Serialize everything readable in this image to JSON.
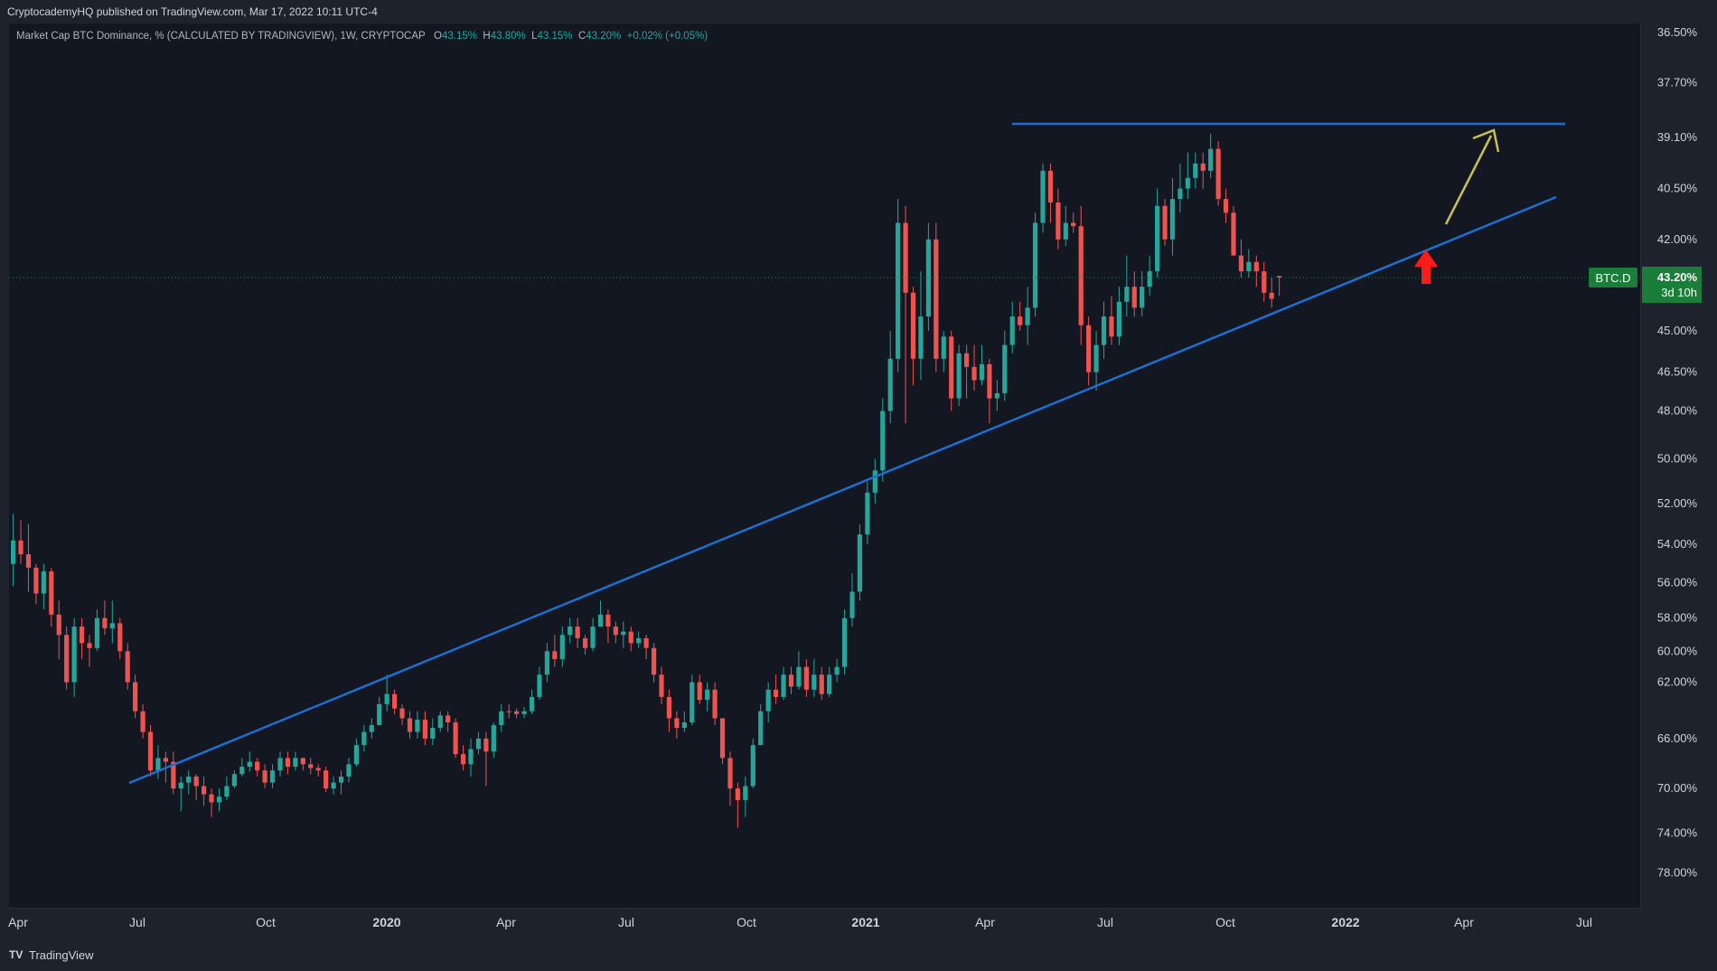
{
  "header": {
    "published": "CryptocademyHQ published on TradingView.com, Mar 17, 2022 10:11 UTC-4"
  },
  "legend": {
    "title": "Market Cap BTC Dominance, % (CALCULATED BY TRADINGVIEW), 1W, CRYPTOCAP",
    "o_label": "O",
    "o_value": "43.15%",
    "h_label": "H",
    "h_value": "43.80%",
    "l_label": "L",
    "l_value": "43.15%",
    "c_label": "C",
    "c_value": "43.20%",
    "change": "+0.02% (+0.05%)"
  },
  "footer": {
    "brand": "TradingView",
    "logo": "TV"
  },
  "colors": {
    "up": "#26a69a",
    "down": "#ef5350",
    "trendline": "#1e6fd0",
    "arrow_up": "#c8c04a",
    "arrow_red": "#ff1a1a",
    "badge": "#1b7d3a"
  },
  "chart_data": {
    "type": "candlestick",
    "symbol": "BTC.D",
    "timeframe": "1W",
    "y_axis": {
      "scale": "inverted",
      "labels": [
        "36.50%",
        "37.70%",
        "39.10%",
        "40.50%",
        "42.00%",
        "43.20%",
        "45.00%",
        "46.50%",
        "48.00%",
        "50.00%",
        "52.00%",
        "54.00%",
        "56.00%",
        "58.00%",
        "60.00%",
        "62.00%",
        "66.00%",
        "70.00%",
        "74.00%",
        "78.00%"
      ]
    },
    "x_axis": {
      "labels": [
        "Apr",
        "Jul",
        "Oct",
        "2020",
        "Apr",
        "Jul",
        "Oct",
        "2021",
        "Apr",
        "Jul",
        "Oct",
        "2022",
        "Apr",
        "Jul"
      ],
      "bold": [
        "2020",
        "2021",
        "2022"
      ]
    },
    "last_price": {
      "symbol_label": "BTC.D",
      "value": "43.20%",
      "countdown": "3d 10h"
    },
    "candles": [
      [
        55.0,
        53.8,
        56.2,
        52.5
      ],
      [
        53.8,
        54.5,
        55.0,
        52.8
      ],
      [
        54.5,
        55.2,
        56.5,
        53.0
      ],
      [
        55.2,
        56.6,
        57.2,
        55.0
      ],
      [
        56.6,
        55.4,
        57.5,
        55.0
      ],
      [
        55.4,
        57.8,
        58.5,
        55.2
      ],
      [
        57.8,
        59.0,
        60.5,
        57.0
      ],
      [
        59.0,
        62.0,
        62.5,
        58.5
      ],
      [
        62.0,
        58.5,
        63.0,
        58.0
      ],
      [
        58.5,
        59.5,
        60.5,
        58.0
      ],
      [
        59.5,
        59.8,
        61.0,
        59.0
      ],
      [
        59.8,
        58.0,
        60.0,
        57.5
      ],
      [
        58.0,
        58.6,
        59.0,
        57.0
      ],
      [
        58.6,
        58.3,
        59.5,
        57.0
      ],
      [
        58.3,
        60.0,
        60.5,
        58.0
      ],
      [
        60.0,
        62.0,
        62.5,
        59.5
      ],
      [
        62.0,
        64.0,
        64.5,
        61.5
      ],
      [
        64.0,
        65.5,
        66.0,
        63.5
      ],
      [
        65.5,
        68.5,
        69.0,
        65.0
      ],
      [
        68.5,
        67.5,
        69.2,
        66.5
      ],
      [
        67.5,
        67.8,
        69.5,
        67.0
      ],
      [
        67.8,
        70.0,
        70.5,
        67.0
      ],
      [
        70.0,
        69.5,
        72.0,
        69.0
      ],
      [
        69.5,
        69.0,
        70.5,
        68.5
      ],
      [
        69.0,
        69.8,
        71.0,
        68.8
      ],
      [
        69.8,
        70.5,
        71.5,
        69.0
      ],
      [
        70.5,
        71.2,
        72.5,
        70.0
      ],
      [
        71.2,
        70.7,
        72.0,
        70.0
      ],
      [
        70.7,
        69.8,
        71.0,
        69.0
      ],
      [
        69.8,
        68.8,
        70.0,
        68.5
      ],
      [
        68.8,
        68.2,
        69.0,
        67.5
      ],
      [
        68.2,
        67.8,
        68.6,
        67.0
      ],
      [
        67.8,
        68.5,
        69.0,
        67.5
      ],
      [
        68.5,
        69.5,
        70.0,
        68.0
      ],
      [
        69.5,
        68.5,
        70.0,
        68.0
      ],
      [
        68.5,
        67.5,
        69.0,
        67.0
      ],
      [
        67.5,
        68.2,
        68.8,
        67.0
      ],
      [
        68.2,
        67.5,
        68.5,
        67.0
      ],
      [
        67.5,
        68.0,
        68.5,
        67.5
      ],
      [
        68.0,
        68.3,
        68.8,
        67.5
      ],
      [
        68.3,
        68.5,
        69.0,
        68.0
      ],
      [
        68.5,
        70.0,
        70.3,
        68.2
      ],
      [
        70.0,
        69.5,
        70.5,
        69.0
      ],
      [
        69.5,
        69.0,
        70.5,
        68.5
      ],
      [
        69.0,
        68.0,
        69.5,
        67.5
      ],
      [
        68.0,
        66.5,
        68.2,
        66.0
      ],
      [
        66.5,
        65.5,
        67.0,
        65.0
      ],
      [
        65.5,
        65.0,
        66.0,
        64.5
      ],
      [
        65.0,
        63.5,
        65.0,
        63.0
      ],
      [
        63.5,
        62.8,
        64.0,
        61.5
      ],
      [
        62.8,
        63.8,
        64.2,
        62.5
      ],
      [
        63.8,
        64.5,
        65.0,
        63.5
      ],
      [
        64.5,
        65.5,
        66.0,
        64.0
      ],
      [
        65.5,
        64.6,
        66.0,
        64.0
      ],
      [
        64.6,
        66.0,
        66.5,
        64.0
      ],
      [
        66.0,
        65.2,
        66.5,
        64.5
      ],
      [
        65.2,
        64.3,
        65.5,
        64.0
      ],
      [
        64.3,
        64.8,
        65.5,
        64.0
      ],
      [
        64.8,
        67.2,
        67.5,
        64.5
      ],
      [
        67.2,
        68.0,
        68.5,
        66.5
      ],
      [
        68.0,
        66.8,
        69.0,
        66.0
      ],
      [
        66.8,
        66.0,
        67.2,
        65.5
      ],
      [
        66.0,
        67.0,
        69.8,
        65.5
      ],
      [
        67.0,
        65.0,
        67.5,
        64.8
      ],
      [
        65.0,
        64.0,
        65.5,
        63.5
      ],
      [
        64.0,
        64.0,
        64.5,
        63.5
      ],
      [
        64.0,
        64.2,
        64.5,
        63.8
      ],
      [
        64.2,
        64.0,
        64.5,
        63.7
      ],
      [
        64.0,
        63.0,
        64.2,
        62.5
      ],
      [
        63.0,
        61.5,
        63.2,
        61.0
      ],
      [
        61.5,
        60.0,
        62.0,
        59.5
      ],
      [
        60.0,
        60.5,
        61.0,
        59.0
      ],
      [
        60.5,
        59.0,
        61.0,
        58.5
      ],
      [
        59.0,
        58.5,
        59.5,
        58.0
      ],
      [
        58.5,
        59.2,
        59.8,
        58.0
      ],
      [
        59.2,
        59.8,
        60.2,
        59.0
      ],
      [
        59.8,
        58.5,
        60.0,
        58.0
      ],
      [
        58.5,
        57.8,
        58.5,
        57.0
      ],
      [
        57.8,
        58.5,
        59.5,
        57.5
      ],
      [
        58.5,
        59.0,
        59.5,
        58.2
      ],
      [
        59.0,
        58.8,
        59.8,
        58.2
      ],
      [
        58.8,
        59.5,
        60.0,
        58.5
      ],
      [
        59.5,
        59.2,
        59.8,
        58.8
      ],
      [
        59.2,
        59.8,
        60.5,
        59.0
      ],
      [
        59.8,
        61.5,
        62.0,
        59.5
      ],
      [
        61.5,
        63.0,
        63.5,
        61.0
      ],
      [
        63.0,
        64.5,
        65.5,
        62.5
      ],
      [
        64.5,
        65.2,
        66.0,
        64.0
      ],
      [
        65.2,
        64.8,
        65.5,
        64.0
      ],
      [
        64.8,
        62.0,
        65.0,
        61.5
      ],
      [
        62.0,
        63.2,
        63.5,
        61.5
      ],
      [
        63.2,
        62.5,
        64.0,
        62.0
      ],
      [
        62.5,
        64.5,
        65.0,
        62.0
      ],
      [
        64.5,
        67.5,
        68.0,
        64.5
      ],
      [
        67.5,
        70.0,
        71.5,
        67.0
      ],
      [
        70.0,
        71.0,
        73.5,
        69.5
      ],
      [
        71.0,
        69.8,
        72.5,
        69.0
      ],
      [
        69.8,
        66.5,
        70.0,
        66.0
      ],
      [
        66.5,
        64.0,
        66.5,
        63.5
      ],
      [
        64.0,
        62.5,
        64.8,
        62.0
      ],
      [
        62.5,
        63.0,
        63.5,
        61.5
      ],
      [
        63.0,
        61.5,
        63.2,
        61.0
      ],
      [
        61.5,
        62.3,
        62.8,
        61.0
      ],
      [
        62.3,
        61.0,
        62.5,
        60.0
      ],
      [
        61.0,
        62.5,
        63.0,
        60.5
      ],
      [
        62.5,
        61.5,
        63.0,
        60.5
      ],
      [
        61.5,
        62.8,
        63.2,
        61.0
      ],
      [
        62.8,
        61.5,
        63.0,
        61.0
      ],
      [
        61.5,
        61.0,
        62.0,
        60.5
      ],
      [
        61.0,
        58.0,
        61.5,
        57.5
      ],
      [
        58.0,
        56.5,
        58.5,
        55.5
      ],
      [
        56.5,
        53.5,
        57.0,
        53.0
      ],
      [
        53.5,
        51.5,
        54.0,
        51.0
      ],
      [
        51.5,
        50.5,
        52.0,
        50.0
      ],
      [
        50.5,
        48.0,
        51.0,
        47.5
      ],
      [
        48.0,
        46.0,
        48.5,
        45.0
      ],
      [
        46.0,
        41.5,
        46.5,
        40.8
      ],
      [
        41.5,
        43.7,
        48.5,
        41.0
      ],
      [
        43.7,
        46.0,
        47.0,
        43.5
      ],
      [
        46.0,
        44.5,
        46.8,
        43.0
      ],
      [
        44.5,
        42.0,
        45.0,
        41.5
      ],
      [
        42.0,
        46.0,
        46.5,
        41.5
      ],
      [
        46.0,
        45.2,
        46.5,
        45.0
      ],
      [
        45.2,
        47.5,
        48.0,
        45.0
      ],
      [
        47.5,
        45.8,
        47.8,
        45.5
      ],
      [
        45.8,
        46.3,
        47.5,
        45.5
      ],
      [
        46.3,
        46.8,
        47.2,
        45.5
      ],
      [
        46.8,
        46.2,
        47.0,
        45.5
      ],
      [
        46.2,
        47.5,
        48.5,
        46.0
      ],
      [
        47.5,
        47.3,
        48.0,
        46.8
      ],
      [
        47.3,
        45.5,
        47.6,
        45.0
      ],
      [
        45.5,
        44.5,
        45.8,
        44.0
      ],
      [
        44.5,
        44.8,
        45.0,
        44.0
      ],
      [
        44.8,
        44.2,
        45.5,
        43.5
      ],
      [
        44.2,
        41.5,
        44.5,
        41.2
      ],
      [
        41.5,
        40.0,
        41.8,
        39.8
      ],
      [
        40.0,
        40.9,
        41.5,
        39.8
      ],
      [
        40.9,
        42.0,
        42.3,
        40.5
      ],
      [
        42.0,
        41.5,
        42.2,
        41.0
      ],
      [
        41.5,
        41.6,
        41.8,
        41.2
      ],
      [
        41.6,
        44.8,
        45.5,
        41.0
      ],
      [
        44.8,
        46.5,
        47.0,
        44.5
      ],
      [
        46.5,
        45.5,
        47.2,
        45.0
      ],
      [
        45.5,
        44.5,
        46.0,
        44.0
      ],
      [
        44.5,
        45.2,
        45.5,
        43.8
      ],
      [
        45.2,
        44.0,
        45.5,
        43.5
      ],
      [
        44.0,
        43.5,
        44.5,
        42.5
      ],
      [
        43.5,
        44.2,
        44.5,
        43.0
      ],
      [
        44.2,
        43.5,
        44.5,
        43.0
      ],
      [
        43.5,
        43.0,
        43.8,
        42.5
      ],
      [
        43.0,
        41.0,
        43.2,
        40.5
      ],
      [
        41.0,
        42.0,
        42.2,
        40.8
      ],
      [
        42.0,
        40.8,
        42.5,
        40.2
      ],
      [
        40.8,
        40.5,
        41.2,
        39.8
      ],
      [
        40.5,
        40.2,
        40.8,
        39.5
      ],
      [
        40.2,
        39.8,
        40.5,
        39.5
      ],
      [
        39.8,
        40.0,
        40.5,
        39.5
      ],
      [
        40.0,
        39.4,
        40.2,
        39.0
      ],
      [
        39.4,
        40.8,
        41.0,
        39.2
      ],
      [
        40.8,
        41.2,
        41.5,
        40.5
      ],
      [
        41.2,
        42.5,
        42.5,
        41.0
      ],
      [
        42.5,
        43.0,
        43.2,
        42.0
      ],
      [
        43.0,
        42.7,
        43.2,
        42.3
      ],
      [
        42.7,
        43.0,
        43.5,
        42.5
      ],
      [
        43.0,
        43.7,
        44.0,
        42.7
      ],
      [
        43.7,
        43.9,
        44.2,
        43.2
      ],
      [
        43.15,
        43.2,
        43.8,
        43.15
      ]
    ]
  }
}
